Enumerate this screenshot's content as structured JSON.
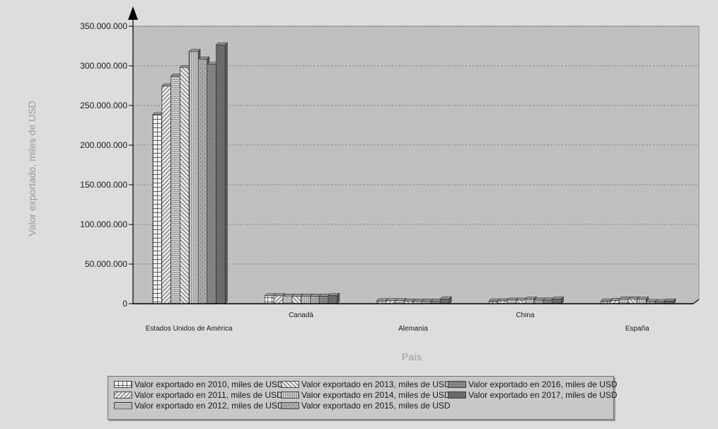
{
  "chart_data": {
    "type": "bar",
    "title": "",
    "xlabel": "País",
    "ylabel": "Valor exportado, miles de USD",
    "ylim": [
      0,
      350000000
    ],
    "yticks": [
      0,
      50000000,
      100000000,
      150000000,
      200000000,
      250000000,
      300000000,
      350000000
    ],
    "ytick_labels": [
      "0",
      "50.000.000",
      "100.000.000",
      "150.000.000",
      "200.000.000",
      "250.000.000",
      "300.000.000",
      "350.000.000"
    ],
    "grid": true,
    "legend_position": "bottom",
    "categories": [
      "Estados Unidos de América",
      "Canadá",
      "Alemania",
      "China",
      "España"
    ],
    "series": [
      {
        "name": "Valor exportado en 2010, miles de USD",
        "values": [
          238500000,
          10000000,
          3800000,
          3400000,
          3400000
        ]
      },
      {
        "name": "Valor exportado en 2011, miles de USD",
        "values": [
          274500000,
          10000000,
          3800000,
          3600000,
          4000000
        ]
      },
      {
        "name": "Valor exportado en 2012, miles de USD",
        "values": [
          287000000,
          9500000,
          3900000,
          4500000,
          6000000
        ]
      },
      {
        "name": "Valor exportado en 2013, miles de USD",
        "values": [
          298000000,
          9500000,
          3300000,
          4500000,
          6000000
        ]
      },
      {
        "name": "Valor exportado en 2014, miles de USD",
        "values": [
          318000000,
          9500000,
          3300000,
          5800000,
          5800000
        ]
      },
      {
        "name": "Valor exportado en 2015, miles de USD",
        "values": [
          308500000,
          9500000,
          3300000,
          4600000,
          2800000
        ]
      },
      {
        "name": "Valor exportado en 2016, miles de USD",
        "values": [
          302000000,
          9500000,
          3300000,
          4600000,
          2800000
        ]
      },
      {
        "name": "Valor exportado en 2017, miles de USD",
        "values": [
          326500000,
          10500000,
          5900000,
          5900000,
          3400000
        ]
      }
    ]
  },
  "colors": {
    "background": "#dddddd",
    "plot_area": "#c0c0c0",
    "bar_fill": "#e8e8e8",
    "bar_stroke": "#2b2b2b",
    "dark_bar": "#6a6a6a",
    "grid": "#7a7a7a"
  }
}
